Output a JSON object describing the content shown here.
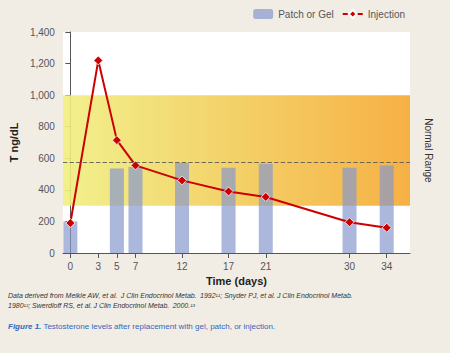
{
  "chart_data": {
    "type": "bar",
    "series": [
      {
        "name": "Patch or Gel",
        "type": "bar",
        "color": "#8899cc",
        "x": [
          0,
          5,
          7,
          12,
          17,
          21,
          30,
          34
        ],
        "values": [
          200,
          535,
          545,
          570,
          540,
          565,
          540,
          555
        ]
      },
      {
        "name": "Injection",
        "type": "line",
        "color": "#cc0000",
        "marker": "diamond",
        "x": [
          0,
          3,
          5,
          7,
          12,
          17,
          21,
          30,
          34
        ],
        "values": [
          190,
          1220,
          715,
          555,
          460,
          390,
          355,
          195,
          160
        ]
      }
    ],
    "reference_line": {
      "y": 575,
      "color": "#555555",
      "line_style": "dashed"
    },
    "band": {
      "low": 300,
      "high": 1000,
      "label": "Normal Range",
      "colors": [
        "#f0ef80",
        "#f5a830"
      ]
    },
    "xlabel": "Time (days)",
    "ylabel": "T ng/dL",
    "xlim": [
      -0.8,
      36.5
    ],
    "ylim": [
      0,
      1400
    ],
    "xticks": [
      0,
      3,
      5,
      7,
      12,
      17,
      21,
      30,
      34
    ],
    "yticks": [
      0,
      200,
      400,
      600,
      800,
      1000,
      1200,
      1400
    ],
    "grid": false,
    "legend": "upper right",
    "footnote": "Data derived from Meikle AW, et al.  J Clin Endocrinol Metab.  1992¹¹; Snyder PJ, et al. J Clin Endocrinol Metab.\n1980¹²; Swerdloff RS, et al. J Clin Endocrinol Metab.  2000.¹³",
    "caption": {
      "bold": "Figure 1.",
      "text": " Testosterone levels after replacement with gel, patch, or injection.",
      "color": "#3366bb"
    },
    "background_color": "#f2ede4",
    "plot_background_color": "#ffffff"
  }
}
